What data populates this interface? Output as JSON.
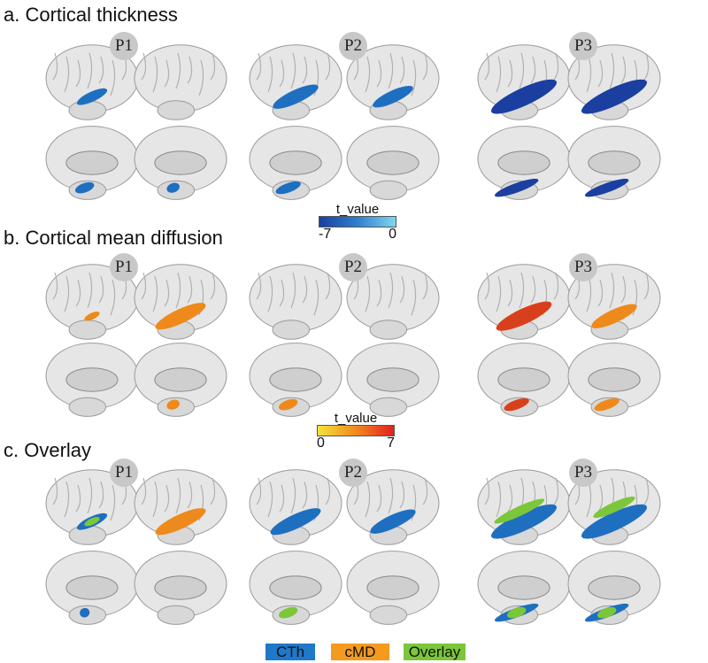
{
  "sections": [
    {
      "title": "a. Cortical thickness",
      "participants": [
        "P1",
        "P2",
        "P3"
      ]
    },
    {
      "title": "b. Cortical mean diffusion",
      "participants": [
        "P1",
        "P2",
        "P3"
      ]
    },
    {
      "title": "c. Overlay",
      "participants": [
        "P1",
        "P2",
        "P3"
      ]
    }
  ],
  "colorbars": [
    {
      "label": "t_value",
      "min": "-7",
      "max": "0",
      "colors": [
        "#1a3fa0",
        "#2f7fd0",
        "#7fd6ee"
      ]
    },
    {
      "label": "t_value",
      "min": "0",
      "max": "7",
      "colors": [
        "#f5e13a",
        "#f28a1e",
        "#e02020"
      ]
    }
  ],
  "legend": [
    {
      "label": "CTh",
      "color": "#1f78c8"
    },
    {
      "label": "cMD",
      "color": "#f39a1f"
    },
    {
      "label": "Overlay",
      "color": "#7cc63a"
    }
  ]
}
